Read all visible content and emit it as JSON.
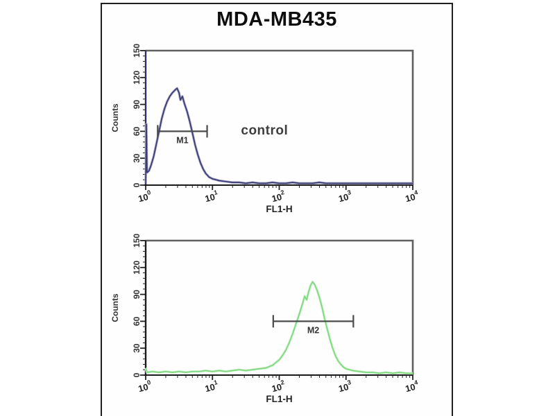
{
  "title": "MDA-MB435",
  "chart_data": [
    {
      "type": "line",
      "id": "control-histogram",
      "xlabel": "FL1-H",
      "ylabel": "Counts",
      "x_scale": "log",
      "xlim_log": [
        0,
        4
      ],
      "x_exponents": [
        0,
        1,
        2,
        3,
        4
      ],
      "ylim": [
        0,
        150
      ],
      "y_ticks": [
        0,
        30,
        60,
        90,
        120,
        150
      ],
      "colors": {
        "curve": "#3c3c6e",
        "halo": "#a8a8cc",
        "axis": "#222222",
        "y_axis": "#2e2e5e",
        "frame": "#5f5f5f",
        "marker": "#4a4a4a"
      },
      "marker": {
        "label": "M1",
        "y": 60,
        "from_log": 0.18,
        "to_log": 0.92
      },
      "annotation": {
        "text": "control",
        "x_log": 1.78,
        "y": 61
      },
      "points": [
        [
          0.0,
          2
        ],
        [
          0.01,
          68
        ],
        [
          0.02,
          14
        ],
        [
          0.05,
          16
        ],
        [
          0.08,
          22
        ],
        [
          0.12,
          32
        ],
        [
          0.16,
          46
        ],
        [
          0.2,
          60
        ],
        [
          0.24,
          74
        ],
        [
          0.28,
          85
        ],
        [
          0.32,
          93
        ],
        [
          0.36,
          99
        ],
        [
          0.4,
          103
        ],
        [
          0.44,
          106
        ],
        [
          0.47,
          108
        ],
        [
          0.5,
          103
        ],
        [
          0.52,
          95
        ],
        [
          0.55,
          99
        ],
        [
          0.58,
          91
        ],
        [
          0.62,
          82
        ],
        [
          0.66,
          71
        ],
        [
          0.7,
          58
        ],
        [
          0.74,
          45
        ],
        [
          0.78,
          34
        ],
        [
          0.82,
          25
        ],
        [
          0.86,
          18
        ],
        [
          0.9,
          13
        ],
        [
          0.95,
          9
        ],
        [
          1.0,
          7
        ],
        [
          1.05,
          6
        ],
        [
          1.1,
          5
        ],
        [
          1.2,
          4
        ],
        [
          1.3,
          3
        ],
        [
          1.4,
          3
        ],
        [
          1.5,
          2
        ],
        [
          1.6,
          3
        ],
        [
          1.7,
          2
        ],
        [
          1.8,
          2
        ],
        [
          1.9,
          3
        ],
        [
          2.0,
          2
        ],
        [
          2.1,
          2
        ],
        [
          2.2,
          3
        ],
        [
          2.3,
          2
        ],
        [
          2.4,
          2
        ],
        [
          2.5,
          2
        ],
        [
          2.6,
          3
        ],
        [
          2.7,
          2
        ],
        [
          2.8,
          2
        ],
        [
          2.9,
          2
        ],
        [
          3.0,
          2
        ],
        [
          3.1,
          2
        ],
        [
          3.2,
          2
        ],
        [
          3.3,
          2
        ],
        [
          3.4,
          2
        ],
        [
          3.5,
          2
        ],
        [
          3.6,
          2
        ],
        [
          3.7,
          2
        ],
        [
          3.8,
          2
        ],
        [
          3.9,
          2
        ],
        [
          4.0,
          2
        ]
      ]
    },
    {
      "type": "line",
      "id": "stained-histogram",
      "xlabel": "FL1-H",
      "ylabel": "Counts",
      "x_scale": "log",
      "xlim_log": [
        0,
        4
      ],
      "x_exponents": [
        0,
        1,
        2,
        3,
        4
      ],
      "ylim": [
        0,
        150
      ],
      "y_ticks": [
        0,
        30,
        60,
        90,
        120,
        150
      ],
      "colors": {
        "curve": "#7fd87f",
        "halo": "#cdf2cd",
        "axis": "#222222",
        "y_axis": "#1a1a1a",
        "frame": "#5f5f5f",
        "marker": "#4a4a4a"
      },
      "marker": {
        "label": "M2",
        "y": 60,
        "from_log": 1.91,
        "to_log": 3.11
      },
      "annotation": null,
      "points": [
        [
          0.0,
          8
        ],
        [
          0.02,
          3
        ],
        [
          0.1,
          4
        ],
        [
          0.2,
          3
        ],
        [
          0.3,
          4
        ],
        [
          0.4,
          3
        ],
        [
          0.5,
          4
        ],
        [
          0.6,
          3
        ],
        [
          0.7,
          4
        ],
        [
          0.8,
          4
        ],
        [
          0.9,
          5
        ],
        [
          1.0,
          4
        ],
        [
          1.1,
          5
        ],
        [
          1.2,
          4
        ],
        [
          1.3,
          5
        ],
        [
          1.4,
          6
        ],
        [
          1.5,
          5
        ],
        [
          1.6,
          6
        ],
        [
          1.7,
          7
        ],
        [
          1.8,
          8
        ],
        [
          1.9,
          11
        ],
        [
          1.95,
          14
        ],
        [
          2.0,
          17
        ],
        [
          2.05,
          22
        ],
        [
          2.1,
          28
        ],
        [
          2.15,
          36
        ],
        [
          2.2,
          46
        ],
        [
          2.25,
          57
        ],
        [
          2.3,
          68
        ],
        [
          2.35,
          80
        ],
        [
          2.38,
          88
        ],
        [
          2.41,
          84
        ],
        [
          2.44,
          93
        ],
        [
          2.47,
          100
        ],
        [
          2.5,
          104
        ],
        [
          2.53,
          101
        ],
        [
          2.56,
          96
        ],
        [
          2.6,
          87
        ],
        [
          2.64,
          76
        ],
        [
          2.68,
          63
        ],
        [
          2.72,
          51
        ],
        [
          2.76,
          40
        ],
        [
          2.8,
          30
        ],
        [
          2.84,
          22
        ],
        [
          2.88,
          16
        ],
        [
          2.92,
          12
        ],
        [
          2.96,
          9
        ],
        [
          3.0,
          7
        ],
        [
          3.05,
          6
        ],
        [
          3.1,
          5
        ],
        [
          3.2,
          4
        ],
        [
          3.3,
          3
        ],
        [
          3.4,
          3
        ],
        [
          3.5,
          2
        ],
        [
          3.6,
          3
        ],
        [
          3.7,
          2
        ],
        [
          3.8,
          3
        ],
        [
          3.9,
          2
        ],
        [
          4.0,
          2
        ]
      ]
    }
  ]
}
